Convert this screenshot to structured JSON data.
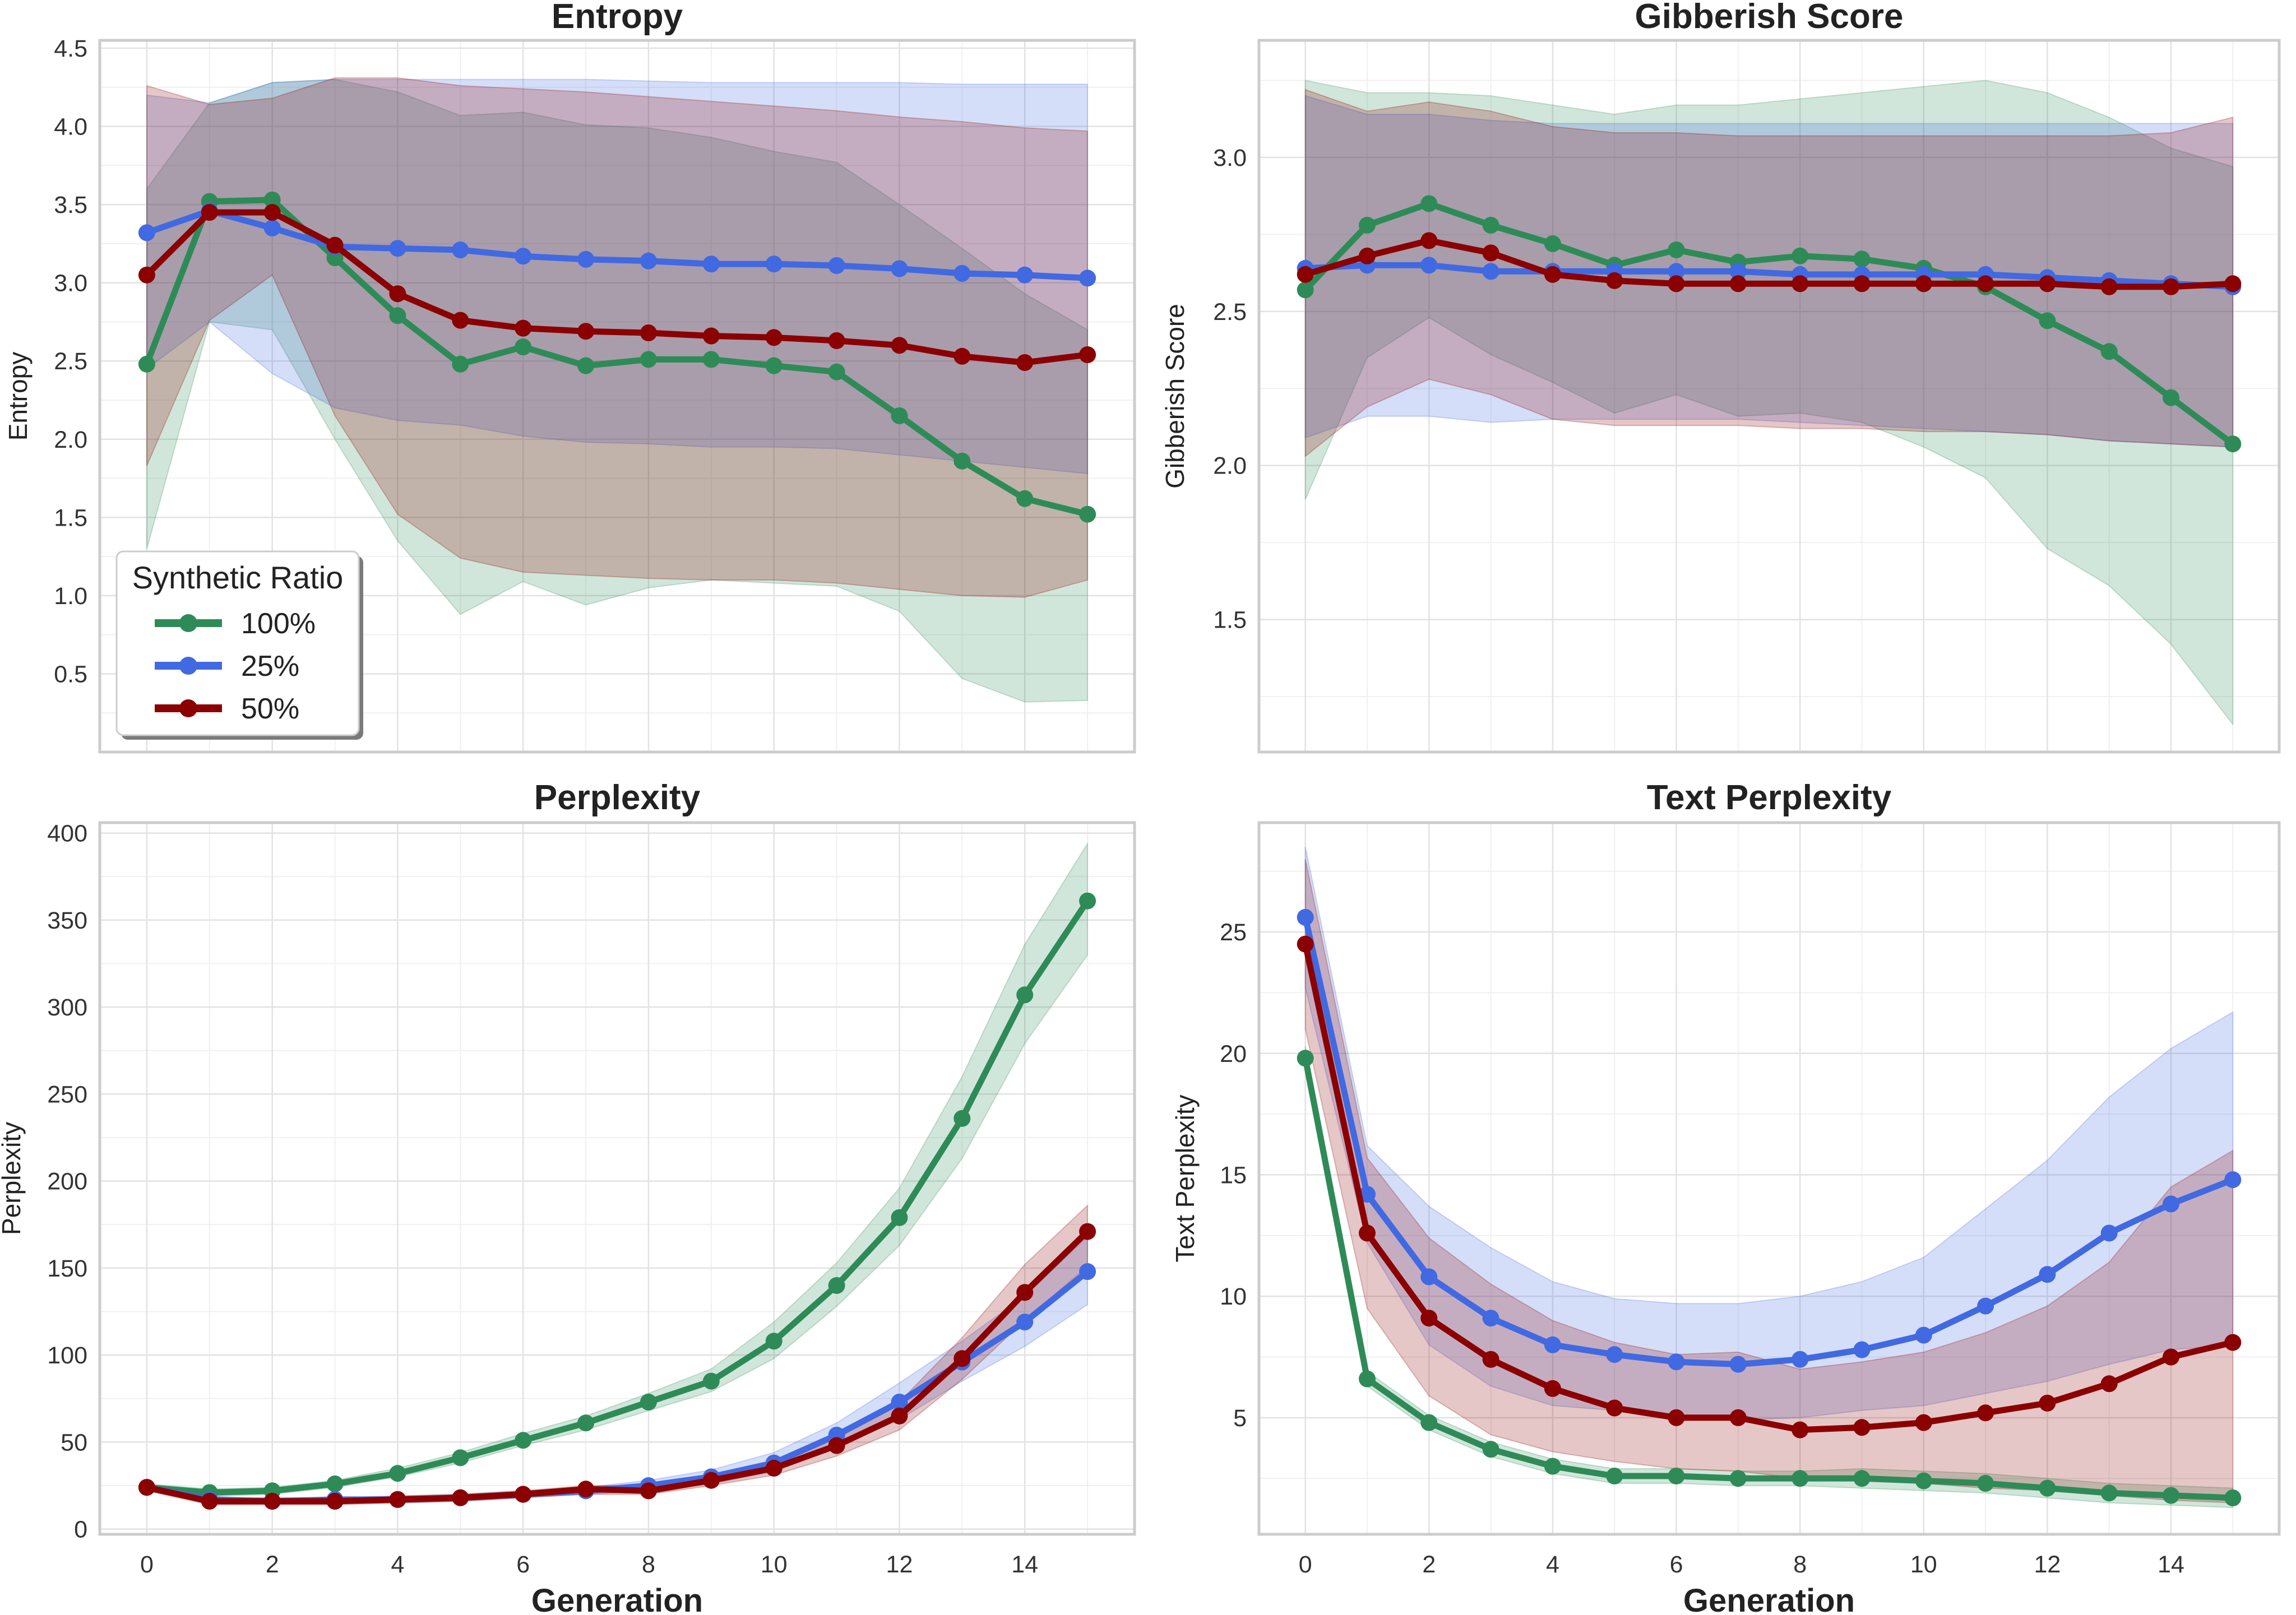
{
  "figure": {
    "x_label": "Generation",
    "legend": {
      "title": "Synthetic Ratio",
      "placement": "lower-left of Entropy panel",
      "entries": [
        {
          "label": "100%",
          "color": "#2e8b57"
        },
        {
          "label": "25%",
          "color": "#4169e1"
        },
        {
          "label": "50%",
          "color": "#8b0000"
        }
      ]
    }
  },
  "chart_data": [
    {
      "id": "entropy",
      "type": "line",
      "title": "Entropy",
      "xlabel": "",
      "ylabel": "Entropy",
      "xlim": [
        -0.75,
        15.75
      ],
      "ylim": [
        0.0,
        4.55
      ],
      "xticks": [],
      "yticks": [
        0.5,
        1.0,
        1.5,
        2.0,
        2.5,
        3.0,
        3.5,
        4.0,
        4.5
      ],
      "ytick_labels": [
        "0.5",
        "1.0",
        "1.5",
        "2.0",
        "2.5",
        "3.0",
        "3.5",
        "4.0",
        "4.5"
      ],
      "grid": true,
      "x": [
        0,
        1,
        2,
        3,
        4,
        5,
        6,
        7,
        8,
        9,
        10,
        11,
        12,
        13,
        14,
        15
      ],
      "series": [
        {
          "name": "100%",
          "color": "#2e8b57",
          "values": [
            2.48,
            3.52,
            3.53,
            3.16,
            2.79,
            2.48,
            2.59,
            2.47,
            2.51,
            2.51,
            2.47,
            2.43,
            2.15,
            1.86,
            1.62,
            1.52
          ],
          "lower": [
            1.3,
            2.75,
            2.7,
            2.0,
            1.35,
            0.88,
            1.09,
            0.94,
            1.05,
            1.1,
            1.08,
            1.06,
            0.9,
            0.47,
            0.32,
            0.33
          ],
          "upper": [
            3.6,
            4.15,
            4.28,
            4.3,
            4.22,
            4.07,
            4.09,
            4.01,
            3.99,
            3.93,
            3.84,
            3.77,
            3.5,
            3.22,
            2.93,
            2.7
          ]
        },
        {
          "name": "25%",
          "color": "#4169e1",
          "values": [
            3.32,
            3.46,
            3.35,
            3.23,
            3.22,
            3.21,
            3.17,
            3.15,
            3.14,
            3.12,
            3.12,
            3.11,
            3.09,
            3.06,
            3.05,
            3.03
          ],
          "lower": [
            2.45,
            2.75,
            2.42,
            2.2,
            2.12,
            2.09,
            2.02,
            1.98,
            1.97,
            1.95,
            1.95,
            1.94,
            1.9,
            1.86,
            1.82,
            1.78
          ],
          "upper": [
            4.2,
            4.15,
            4.28,
            4.3,
            4.3,
            4.3,
            4.3,
            4.3,
            4.29,
            4.28,
            4.28,
            4.28,
            4.28,
            4.27,
            4.27,
            4.27
          ]
        },
        {
          "name": "50%",
          "color": "#8b0000",
          "values": [
            3.05,
            3.45,
            3.45,
            3.24,
            2.93,
            2.76,
            2.71,
            2.69,
            2.68,
            2.66,
            2.65,
            2.63,
            2.6,
            2.53,
            2.49,
            2.54
          ],
          "lower": [
            1.83,
            2.76,
            3.05,
            2.15,
            1.52,
            1.24,
            1.15,
            1.13,
            1.11,
            1.1,
            1.1,
            1.08,
            1.04,
            1.0,
            0.99,
            1.1
          ],
          "upper": [
            4.26,
            4.14,
            4.18,
            4.31,
            4.31,
            4.26,
            4.24,
            4.22,
            4.19,
            4.16,
            4.13,
            4.1,
            4.06,
            4.03,
            3.99,
            3.97
          ]
        }
      ]
    },
    {
      "id": "gibberish",
      "type": "line",
      "title": "Gibberish Score",
      "xlabel": "",
      "ylabel": "Gibberish Score",
      "xlim": [
        -0.75,
        15.75
      ],
      "ylim": [
        1.07,
        3.38
      ],
      "xticks": [],
      "yticks": [
        1.5,
        2.0,
        2.5,
        3.0
      ],
      "ytick_labels": [
        "1.5",
        "2.0",
        "2.5",
        "3.0"
      ],
      "grid": true,
      "x": [
        0,
        1,
        2,
        3,
        4,
        5,
        6,
        7,
        8,
        9,
        10,
        11,
        12,
        13,
        14,
        15
      ],
      "series": [
        {
          "name": "100%",
          "color": "#2e8b57",
          "values": [
            2.57,
            2.78,
            2.85,
            2.78,
            2.72,
            2.65,
            2.7,
            2.66,
            2.68,
            2.67,
            2.64,
            2.58,
            2.47,
            2.37,
            2.22,
            2.07
          ],
          "lower": [
            1.89,
            2.35,
            2.48,
            2.36,
            2.27,
            2.17,
            2.23,
            2.16,
            2.17,
            2.14,
            2.06,
            1.96,
            1.73,
            1.61,
            1.42,
            1.16
          ],
          "upper": [
            3.25,
            3.21,
            3.21,
            3.2,
            3.17,
            3.14,
            3.17,
            3.17,
            3.19,
            3.21,
            3.23,
            3.25,
            3.21,
            3.13,
            3.03,
            2.97
          ]
        },
        {
          "name": "25%",
          "color": "#4169e1",
          "values": [
            2.64,
            2.65,
            2.65,
            2.63,
            2.63,
            2.63,
            2.63,
            2.63,
            2.62,
            2.62,
            2.62,
            2.62,
            2.61,
            2.6,
            2.59,
            2.58
          ],
          "lower": [
            2.09,
            2.16,
            2.16,
            2.14,
            2.15,
            2.15,
            2.15,
            2.15,
            2.14,
            2.13,
            2.12,
            2.11,
            2.1,
            2.08,
            2.07,
            2.06
          ],
          "upper": [
            3.2,
            3.14,
            3.14,
            3.12,
            3.11,
            3.11,
            3.11,
            3.11,
            3.11,
            3.11,
            3.11,
            3.11,
            3.11,
            3.11,
            3.11,
            3.11
          ]
        },
        {
          "name": "50%",
          "color": "#8b0000",
          "values": [
            2.62,
            2.68,
            2.73,
            2.69,
            2.62,
            2.6,
            2.59,
            2.59,
            2.59,
            2.59,
            2.59,
            2.59,
            2.59,
            2.58,
            2.58,
            2.59
          ],
          "lower": [
            2.03,
            2.19,
            2.28,
            2.23,
            2.15,
            2.13,
            2.13,
            2.13,
            2.12,
            2.12,
            2.11,
            2.11,
            2.1,
            2.08,
            2.07,
            2.06
          ],
          "upper": [
            3.22,
            3.15,
            3.18,
            3.15,
            3.1,
            3.08,
            3.08,
            3.07,
            3.07,
            3.07,
            3.07,
            3.07,
            3.07,
            3.07,
            3.08,
            3.13
          ]
        }
      ]
    },
    {
      "id": "perplexity",
      "type": "line",
      "title": "Perplexity",
      "xlabel": "Generation",
      "ylabel": "Perplexity",
      "xlim": [
        -0.75,
        15.75
      ],
      "ylim": [
        -3,
        406
      ],
      "xticks": [
        0,
        2,
        4,
        6,
        8,
        10,
        12,
        14
      ],
      "xtick_labels": [
        "0",
        "2",
        "4",
        "6",
        "8",
        "10",
        "12",
        "14"
      ],
      "yticks": [
        0,
        50,
        100,
        150,
        200,
        250,
        300,
        350,
        400
      ],
      "ytick_labels": [
        "0",
        "50",
        "100",
        "150",
        "200",
        "250",
        "300",
        "350",
        "400"
      ],
      "grid": true,
      "x": [
        0,
        1,
        2,
        3,
        4,
        5,
        6,
        7,
        8,
        9,
        10,
        11,
        12,
        13,
        14,
        15
      ],
      "series": [
        {
          "name": "100%",
          "color": "#2e8b57",
          "values": [
            24,
            21,
            22,
            26,
            32,
            41,
            51,
            61,
            73,
            85,
            108,
            140,
            179,
            236,
            307,
            361
          ],
          "lower": [
            22,
            19,
            20,
            24,
            30,
            38,
            48,
            57,
            68,
            79,
            98,
            128,
            163,
            213,
            279,
            330
          ],
          "upper": [
            26,
            23,
            24,
            28,
            35,
            44,
            55,
            65,
            78,
            92,
            119,
            153,
            196,
            260,
            336,
            394
          ]
        },
        {
          "name": "25%",
          "color": "#4169e1",
          "values": [
            24,
            17,
            16,
            17,
            17,
            18,
            20,
            22,
            25,
            30,
            38,
            54,
            73,
            96,
            119,
            148
          ],
          "lower": [
            22,
            15,
            15,
            15,
            15,
            16,
            18,
            20,
            22,
            26,
            33,
            47,
            63,
            85,
            105,
            129
          ],
          "upper": [
            26,
            19,
            17,
            18,
            19,
            20,
            22,
            24,
            28,
            34,
            44,
            61,
            84,
            108,
            134,
            168
          ]
        },
        {
          "name": "50%",
          "color": "#8b0000",
          "values": [
            24,
            16,
            16,
            16,
            17,
            18,
            20,
            23,
            22,
            28,
            35,
            48,
            65,
            98,
            136,
            171
          ],
          "lower": [
            22,
            14,
            14,
            14,
            15,
            16,
            18,
            20,
            20,
            25,
            31,
            42,
            57,
            86,
            120,
            151
          ],
          "upper": [
            26,
            18,
            18,
            18,
            19,
            20,
            22,
            25,
            25,
            31,
            39,
            53,
            73,
            110,
            152,
            186
          ]
        }
      ]
    },
    {
      "id": "text_perplexity",
      "type": "line",
      "title": "Text Perplexity",
      "xlabel": "Generation",
      "ylabel": "Text Perplexity",
      "xlim": [
        -0.75,
        15.75
      ],
      "ylim": [
        0.2,
        29.5
      ],
      "xticks": [
        0,
        2,
        4,
        6,
        8,
        10,
        12,
        14
      ],
      "xtick_labels": [
        "0",
        "2",
        "4",
        "6",
        "8",
        "10",
        "12",
        "14"
      ],
      "yticks": [
        5,
        10,
        15,
        20,
        25
      ],
      "ytick_labels": [
        "5",
        "10",
        "15",
        "20",
        "25"
      ],
      "grid": true,
      "x": [
        0,
        1,
        2,
        3,
        4,
        5,
        6,
        7,
        8,
        9,
        10,
        11,
        12,
        13,
        14,
        15
      ],
      "series": [
        {
          "name": "100%",
          "color": "#2e8b57",
          "values": [
            19.8,
            6.6,
            4.8,
            3.7,
            3.0,
            2.6,
            2.6,
            2.5,
            2.5,
            2.5,
            2.4,
            2.3,
            2.1,
            1.9,
            1.8,
            1.7
          ],
          "lower": [
            19.3,
            6.3,
            4.5,
            3.4,
            2.7,
            2.3,
            2.3,
            2.2,
            2.2,
            2.1,
            2.0,
            1.9,
            1.7,
            1.5,
            1.4,
            1.3
          ],
          "upper": [
            20.3,
            6.9,
            5.1,
            4.0,
            3.3,
            2.9,
            2.9,
            2.8,
            2.8,
            2.9,
            2.8,
            2.7,
            2.5,
            2.3,
            2.2,
            2.1
          ]
        },
        {
          "name": "25%",
          "color": "#4169e1",
          "values": [
            25.6,
            14.2,
            10.8,
            9.1,
            8.0,
            7.6,
            7.3,
            7.2,
            7.4,
            7.8,
            8.4,
            9.6,
            10.9,
            12.6,
            13.8,
            14.8
          ],
          "lower": [
            22.7,
            12.2,
            8.0,
            6.3,
            5.5,
            5.3,
            5.0,
            4.9,
            5.0,
            5.3,
            5.5,
            6.0,
            6.5,
            7.2,
            7.8,
            8.0
          ],
          "upper": [
            28.5,
            16.2,
            13.7,
            12.0,
            10.6,
            9.9,
            9.7,
            9.7,
            10.0,
            10.6,
            11.6,
            13.6,
            15.6,
            18.2,
            20.2,
            21.7
          ]
        },
        {
          "name": "50%",
          "color": "#8b0000",
          "values": [
            24.5,
            12.6,
            9.1,
            7.4,
            6.2,
            5.4,
            5.0,
            5.0,
            4.5,
            4.6,
            4.8,
            5.2,
            5.6,
            6.4,
            7.5,
            8.1
          ],
          "lower": [
            21.0,
            9.5,
            5.9,
            4.3,
            3.6,
            3.2,
            2.9,
            2.8,
            2.5,
            2.4,
            2.3,
            2.1,
            2.0,
            1.8,
            1.6,
            1.5
          ],
          "upper": [
            28.0,
            15.7,
            12.4,
            10.5,
            9.0,
            8.1,
            7.6,
            7.7,
            7.0,
            7.3,
            7.7,
            8.5,
            9.6,
            11.4,
            14.5,
            16.0
          ]
        }
      ]
    }
  ]
}
